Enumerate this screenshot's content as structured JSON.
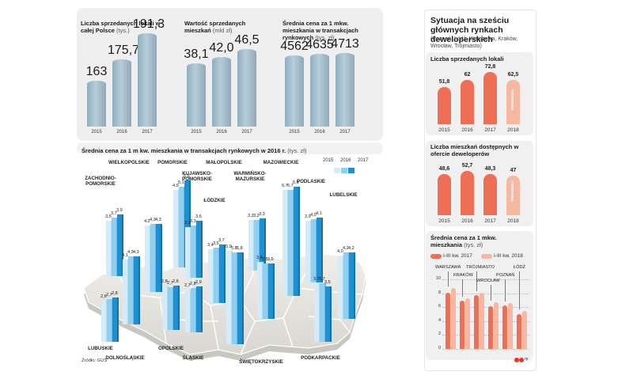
{
  "colors": {
    "blue1": "#d4ebf8",
    "blue2": "#8fcff0",
    "blue3": "#1f8fd3",
    "orange": "#ef6f54",
    "orange_light": "#f7b8a2",
    "grey_bar": "#9eb8c8",
    "map": "#ebeae7"
  },
  "top_charts": [
    {
      "title": "Liczba sprzedanych lokali w całej Polsce",
      "unit": "(tys.)",
      "years": [
        "2015",
        "2016",
        "2017"
      ],
      "values": [
        "163",
        "175,7",
        "191,3"
      ],
      "nums": [
        163,
        175.7,
        191.3
      ]
    },
    {
      "title": "Wartość sprzedanych mieszkań",
      "unit": "(mld zł)",
      "years": [
        "2015",
        "2016",
        "2017"
      ],
      "values": [
        "38,1",
        "42,0",
        "46,5"
      ],
      "nums": [
        38.1,
        42.0,
        46.5
      ]
    },
    {
      "title": "Średnia cena za 1 mkw. mieszkania w transakcjach rynkowych",
      "unit": "(tys. zł)",
      "years": [
        "2015",
        "2016",
        "2017"
      ],
      "values": [
        "4562",
        "4635",
        "4713"
      ],
      "nums": [
        4562,
        4635,
        4713
      ]
    }
  ],
  "map": {
    "title": "Średnia cena za 1 m kw. mieszkania w transakcjach rynkowych w 2016 r.",
    "unit": "(tys. zł)",
    "legend": [
      "2015",
      "2016",
      "2017"
    ],
    "source": "Źródło: GUS",
    "regions": [
      {
        "name": "LUBUSKIE",
        "v": [
          2.6,
          2.7,
          2.8
        ],
        "labels": [
          "2,6",
          "2,7",
          "2,8"
        ]
      },
      {
        "name": "ZACHODNIO-POMORSKIE",
        "v": [
          3.5,
          3.7,
          3.9
        ],
        "labels": [
          "3,5",
          "3,7",
          "3,9"
        ]
      },
      {
        "name": "DOLNOŚLĄSKIE",
        "v": [
          4.1,
          4.3,
          4.3
        ],
        "labels": [
          "4,1",
          "4,3",
          "4,3"
        ]
      },
      {
        "name": "WIELKOPOLSKIE",
        "v": [
          4.2,
          4.3,
          4.3
        ],
        "labels": [
          "4,2",
          "4,3",
          "4,3"
        ]
      },
      {
        "name": "OPOLSKIE",
        "v": [
          2.8,
          2.7,
          2.8
        ],
        "labels": [
          "2,8",
          "2,7",
          "2,8"
        ]
      },
      {
        "name": "POMORSKIE",
        "v": [
          4.9,
          5.1,
          5.5
        ],
        "labels": [
          "4,9",
          "5,1",
          "5,5"
        ]
      },
      {
        "name": "KUJAWSKO-POMORSKIE",
        "v": [
          3.2,
          3.3,
          3.6
        ],
        "labels": [
          "3,2",
          "3,3",
          "3,6"
        ]
      },
      {
        "name": "ŚLĄSKIE",
        "v": [
          2.7,
          2.8,
          2.9
        ],
        "labels": [
          "2,7",
          "2,8",
          "2,9"
        ]
      },
      {
        "name": "ŁÓDZKIE",
        "v": [
          3.4,
          3.5,
          3.7
        ],
        "labels": [
          "3,4",
          "3,5",
          "3,7"
        ]
      },
      {
        "name": "MAŁOPOLSKIE",
        "v": [
          5.9,
          5.8,
          5.8
        ],
        "labels": [
          "5,9",
          "5,8",
          "5,8"
        ]
      },
      {
        "name": "WARMIŃSKO-MAZURSKIE",
        "v": [
          3.2,
          3.2,
          3.3
        ],
        "labels": [
          "3,2",
          "3,2",
          "3,3"
        ]
      },
      {
        "name": "ŚWIĘTOKRZYSKIE",
        "v": [
          3.6,
          3.5,
          3.5
        ],
        "labels": [
          "3,6",
          "3,5",
          "3,5"
        ]
      },
      {
        "name": "MAZOWIECKIE",
        "v": [
          6.7,
          6.7,
          6.9
        ],
        "labels": [
          "6,7",
          "6,7",
          "6,9"
        ]
      },
      {
        "name": "PODLASKIE",
        "v": [
          3.9,
          4.0,
          4.1
        ],
        "labels": [
          "3,9",
          "4,0",
          "4,1"
        ]
      },
      {
        "name": "PODKARPACKIE",
        "v": [
          3.7,
          3.7,
          3.5
        ],
        "labels": [
          "3,7",
          "3,7",
          "3,5"
        ]
      },
      {
        "name": "LUBELSKIE",
        "v": [
          4.0,
          4.2,
          4.2
        ],
        "labels": [
          "4,0",
          "4,2",
          "4,2"
        ]
      }
    ]
  },
  "panel": {
    "title": "Sytuacja na sześciu głównych rynkach deweloperskich",
    "subtitle": "(Poznań, Łódź, Warszawa, Kraków, Wrocław, Trójmiasto)",
    "sold": {
      "title": "Liczba sprzedanych lokali",
      "years": [
        "2015",
        "2016",
        "2017",
        "2018"
      ],
      "values": [
        "51,8",
        "62",
        "72,8",
        "62,5"
      ],
      "nums": [
        51.8,
        62,
        72.8,
        62.5
      ],
      "forecast": "PROGNOZA"
    },
    "offer": {
      "title": "Liczba mieszkań dostępnych w ofercie deweloperów",
      "years": [
        "2015",
        "2016",
        "2017",
        "2018"
      ],
      "values": [
        "48,6",
        "52,7",
        "48,3",
        "47"
      ],
      "nums": [
        48.6,
        52.7,
        48.3,
        47
      ],
      "forecast": "PROGNOZA"
    },
    "price": {
      "title": "Średnia cena za 1 mkw. mieszkania",
      "unit": "(tys. zł)",
      "legend": [
        "I-III kw. 2017",
        "I-III kw. 2018"
      ],
      "cities": [
        "WARSZAWA",
        "KRAKÓW",
        "TRÓJMIASTO",
        "WROCŁAW",
        "POZNAŃ",
        "ŁÓDŹ"
      ],
      "v2017": [
        8.1,
        6.9,
        7.7,
        6.1,
        6.3,
        5.0
      ],
      "v2018": [
        8.8,
        7.3,
        8.1,
        6.7,
        6.6,
        5.4
      ],
      "ylim": [
        0,
        10
      ],
      "yticks": [
        "0",
        "2",
        "4",
        "6",
        "8",
        "10"
      ]
    },
    "logo": "rp"
  }
}
